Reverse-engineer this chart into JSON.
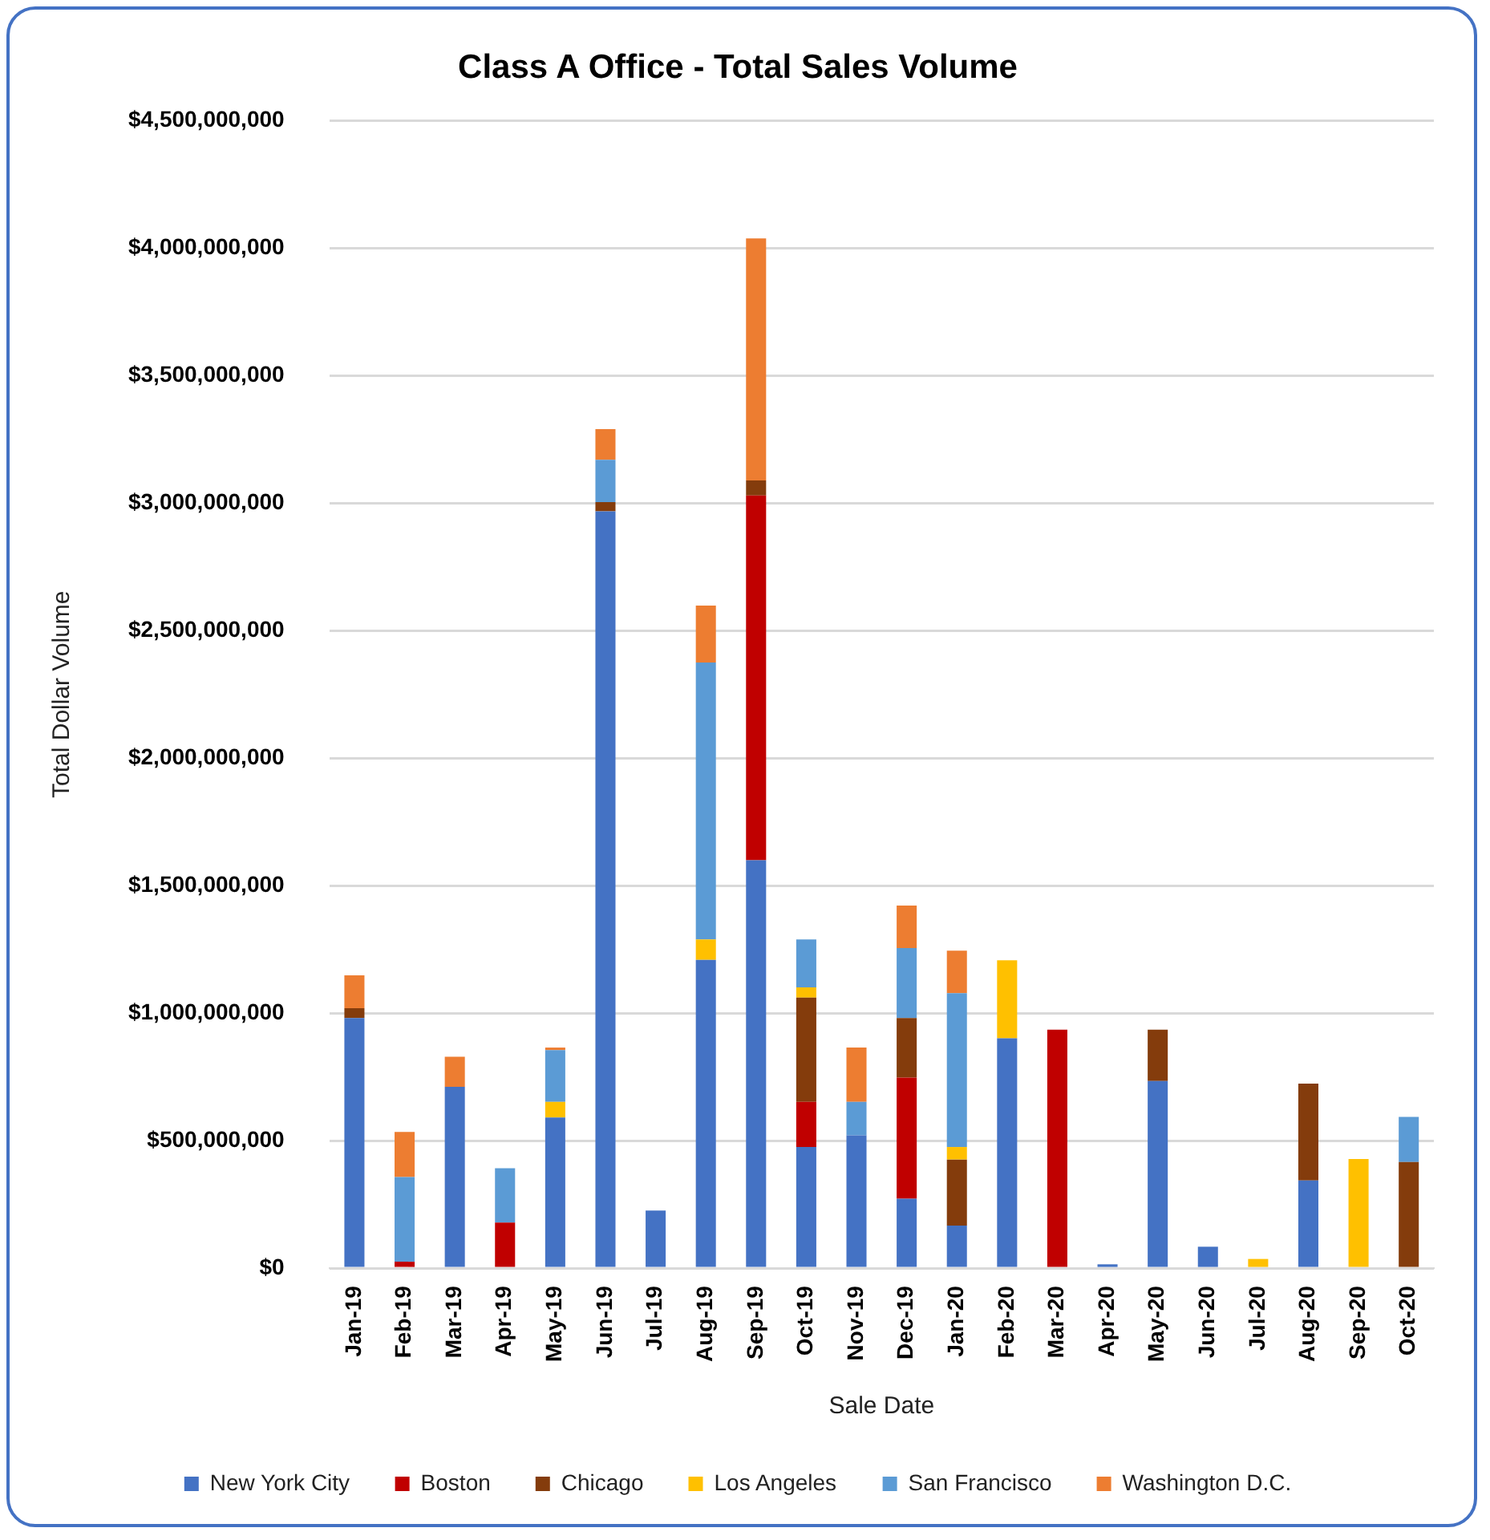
{
  "chart_data": {
    "type": "bar",
    "stacked": true,
    "title": "Class A Office - Total Sales Volume",
    "xlabel": "Sale Date",
    "ylabel": "Total Dollar Volume",
    "categories": [
      "Jan-19",
      "Feb-19",
      "Mar-19",
      "Apr-19",
      "May-19",
      "Jun-19",
      "Jul-19",
      "Aug-19",
      "Sep-19",
      "Oct-19",
      "Nov-19",
      "Dec-19",
      "Jan-20",
      "Feb-20",
      "Mar-20",
      "Apr-20",
      "May-20",
      "Jun-20",
      "Jul-20",
      "Aug-20",
      "Sep-20",
      "Oct-20"
    ],
    "series": [
      {
        "name": "New York City",
        "color": "#4472c4",
        "values": [
          981000000,
          null,
          711000000,
          null,
          591000000,
          2968000000,
          226000000,
          1209000000,
          1600000000,
          475000000,
          521000000,
          272000000,
          167000000,
          901000000,
          null,
          15000000,
          734000000,
          84000000,
          null,
          344000000,
          null,
          null
        ]
      },
      {
        "name": "Boston",
        "color": "#c00000",
        "values": [
          null,
          25000000,
          null,
          179000000,
          null,
          null,
          null,
          null,
          1430000000,
          177000000,
          null,
          475000000,
          null,
          null,
          935000000,
          null,
          null,
          null,
          null,
          null,
          null,
          null
        ]
      },
      {
        "name": "Chicago",
        "color": "#843c0c",
        "values": [
          38000000,
          null,
          null,
          null,
          null,
          36000000,
          null,
          null,
          59000000,
          409000000,
          null,
          234000000,
          259000000,
          null,
          null,
          null,
          201000000,
          null,
          null,
          380000000,
          null,
          416000000
        ]
      },
      {
        "name": "Los Angeles",
        "color": "#ffc000",
        "values": [
          null,
          null,
          null,
          null,
          61000000,
          null,
          null,
          80000000,
          null,
          40000000,
          null,
          null,
          49000000,
          306000000,
          null,
          null,
          null,
          null,
          36000000,
          null,
          428000000,
          null
        ]
      },
      {
        "name": "San Francisco",
        "color": "#5b9bd5",
        "values": [
          null,
          332000000,
          null,
          213000000,
          203000000,
          166000000,
          null,
          1086000000,
          null,
          188000000,
          131000000,
          274000000,
          603000000,
          null,
          null,
          null,
          null,
          null,
          null,
          null,
          null,
          177000000
        ]
      },
      {
        "name": "Washington D.C.",
        "color": "#ed7d31",
        "values": [
          129000000,
          177000000,
          118000000,
          null,
          10000000,
          120000000,
          null,
          223000000,
          949000000,
          null,
          213000000,
          167000000,
          167000000,
          null,
          null,
          null,
          null,
          null,
          null,
          null,
          null,
          null
        ]
      }
    ],
    "ylim": [
      0,
      4500000000
    ],
    "yticks": [
      {
        "value": 0,
        "label": "$0"
      },
      {
        "value": 500000000,
        "label": "$500,000,000"
      },
      {
        "value": 1000000000,
        "label": "$1,000,000,000"
      },
      {
        "value": 1500000000,
        "label": "$1,500,000,000"
      },
      {
        "value": 2000000000,
        "label": "$2,000,000,000"
      },
      {
        "value": 2500000000,
        "label": "$2,500,000,000"
      },
      {
        "value": 3000000000,
        "label": "$3,000,000,000"
      },
      {
        "value": 3500000000,
        "label": "$3,500,000,000"
      },
      {
        "value": 4000000000,
        "label": "$4,000,000,000"
      },
      {
        "value": 4500000000,
        "label": "$4,500,000,000"
      }
    ],
    "grid": "y",
    "legend": "bottom"
  }
}
